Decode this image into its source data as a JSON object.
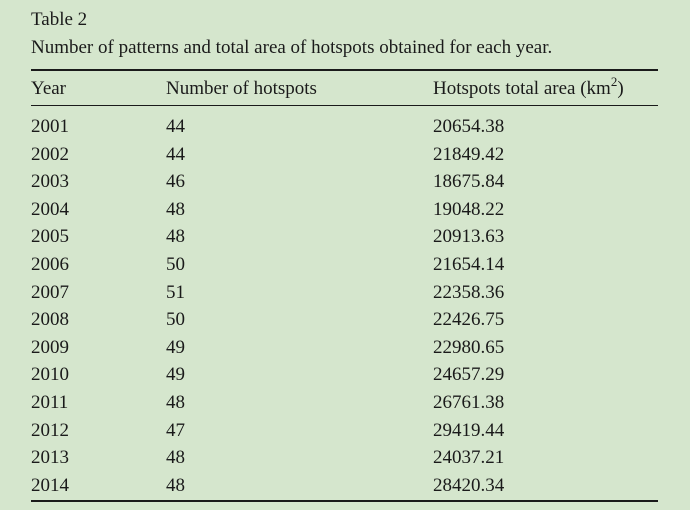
{
  "table": {
    "label": "Table 2",
    "caption": "Number of patterns and total area of hotspots obtained for each year.",
    "headers": {
      "year": "Year",
      "count": "Number of hotspots",
      "area": "Hotspots total area (km",
      "area_sup": "2",
      "area_close": ")"
    },
    "rows": [
      {
        "year": "2001",
        "count": "44",
        "area": "20654.38"
      },
      {
        "year": "2002",
        "count": "44",
        "area": "21849.42"
      },
      {
        "year": "2003",
        "count": "46",
        "area": "18675.84"
      },
      {
        "year": "2004",
        "count": "48",
        "area": "19048.22"
      },
      {
        "year": "2005",
        "count": "48",
        "area": "20913.63"
      },
      {
        "year": "2006",
        "count": "50",
        "area": "21654.14"
      },
      {
        "year": "2007",
        "count": "51",
        "area": "22358.36"
      },
      {
        "year": "2008",
        "count": "50",
        "area": "22426.75"
      },
      {
        "year": "2009",
        "count": "49",
        "area": "22980.65"
      },
      {
        "year": "2010",
        "count": "49",
        "area": "24657.29"
      },
      {
        "year": "2011",
        "count": "48",
        "area": "26761.38"
      },
      {
        "year": "2012",
        "count": "47",
        "area": "29419.44"
      },
      {
        "year": "2013",
        "count": "48",
        "area": "24037.21"
      },
      {
        "year": "2014",
        "count": "48",
        "area": "28420.34"
      }
    ]
  },
  "colors": {
    "background": "#d5e6cd",
    "text": "#1a1a1a"
  }
}
